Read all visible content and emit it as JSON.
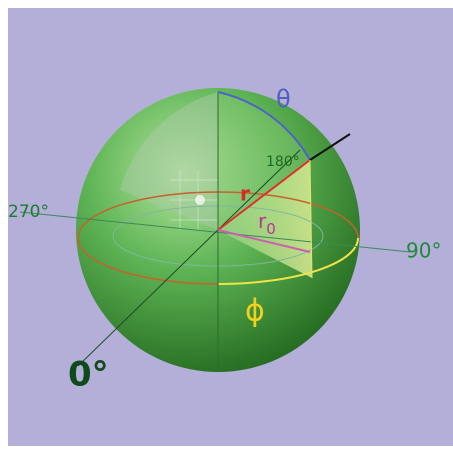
{
  "labels": {
    "theta": "θ",
    "angle_180": "180°",
    "r": "r",
    "r0": {
      "base": "r",
      "subscript": "0"
    },
    "angle_270": "270°",
    "angle_90": "90°",
    "phi": "ϕ",
    "angle_0": "0°"
  }
}
